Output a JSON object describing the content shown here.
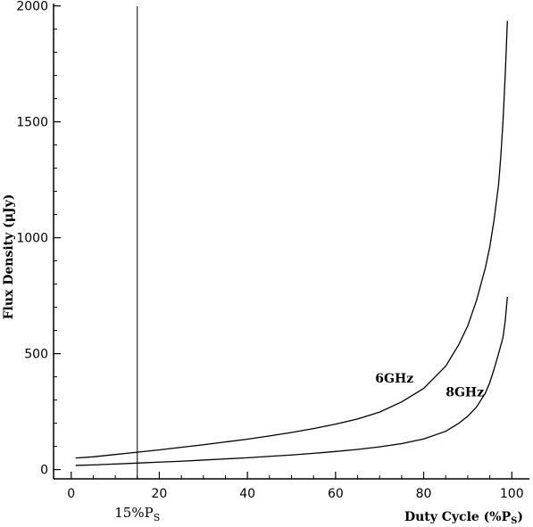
{
  "chart_data": {
    "type": "line",
    "title": "",
    "xlabel": "Duty Cycle (%P",
    "xlabel_sub": "S",
    "xlabel_end": ")",
    "ylabel": "Flux Density (μJy)",
    "xlim": [
      -4,
      104
    ],
    "ylim": [
      -40,
      2010
    ],
    "x_ticks": [
      0,
      20,
      40,
      60,
      80,
      100
    ],
    "y_ticks": [
      0,
      500,
      1000,
      1500,
      2000
    ],
    "grid": false,
    "line_color": "#000000",
    "series": [
      {
        "name": "6GHz",
        "x": [
          1,
          5,
          10,
          15,
          20,
          25,
          30,
          35,
          40,
          45,
          50,
          55,
          60,
          65,
          70,
          75,
          80,
          85,
          88,
          90,
          92,
          94,
          95,
          96,
          97,
          97.5,
          98,
          98.5,
          99
        ],
        "y": [
          50,
          55,
          65,
          75,
          85,
          96,
          107,
          119,
          131,
          145,
          160,
          177,
          196,
          218,
          248,
          292,
          350,
          446,
          540,
          620,
          730,
          870,
          960,
          1080,
          1230,
          1350,
          1500,
          1700,
          1935
        ]
      },
      {
        "name": "8GHz",
        "x": [
          1,
          5,
          10,
          15,
          20,
          25,
          30,
          35,
          40,
          45,
          50,
          55,
          60,
          65,
          70,
          75,
          80,
          85,
          88,
          90,
          92,
          94,
          95,
          96,
          97,
          98,
          98.5,
          99
        ],
        "y": [
          18,
          20,
          24,
          28,
          32,
          36,
          41,
          46,
          51,
          57,
          63,
          70,
          78,
          87,
          98,
          112,
          132,
          165,
          200,
          230,
          270,
          330,
          375,
          435,
          500,
          570,
          640,
          745
        ]
      }
    ],
    "series_labels": [
      {
        "text": "6GHz",
        "x": 69,
        "y": 375
      },
      {
        "text": "8GHz",
        "x": 85,
        "y": 315
      }
    ],
    "annotations": [
      {
        "type": "vline",
        "x": 15,
        "label": "15%P",
        "label_sub": "S"
      }
    ]
  }
}
